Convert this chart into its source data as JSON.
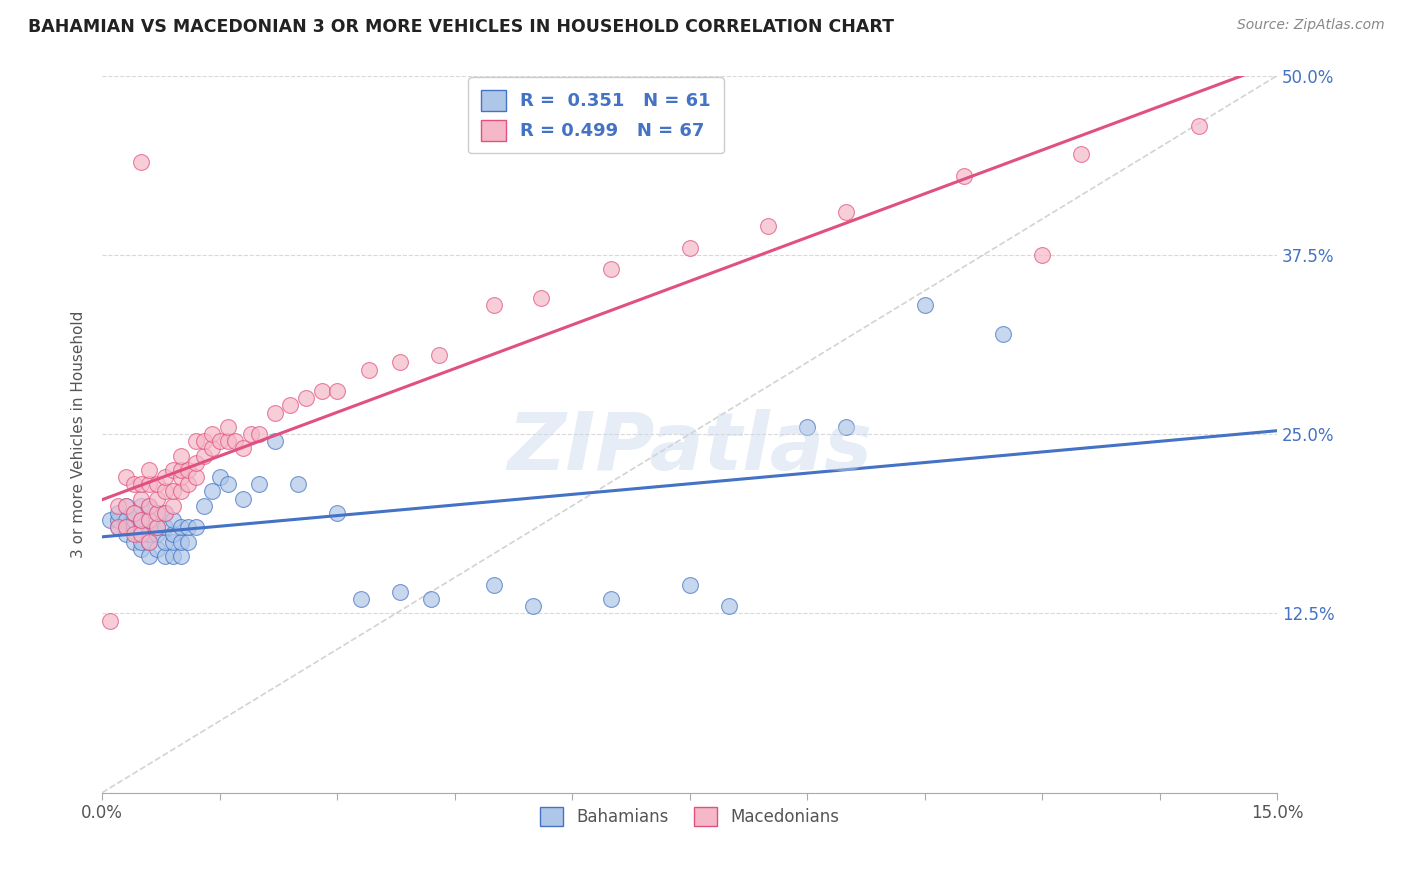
{
  "title": "BAHAMIAN VS MACEDONIAN 3 OR MORE VEHICLES IN HOUSEHOLD CORRELATION CHART",
  "source": "Source: ZipAtlas.com",
  "ylabel": "3 or more Vehicles in Household",
  "yticks_labels": [
    "",
    "12.5%",
    "25.0%",
    "37.5%",
    "50.0%"
  ],
  "ytick_vals": [
    0.0,
    0.125,
    0.25,
    0.375,
    0.5
  ],
  "xlim": [
    0.0,
    0.15
  ],
  "ylim": [
    0.0,
    0.5
  ],
  "watermark": "ZIPatlas",
  "R1": 0.351,
  "N1": 61,
  "R2": 0.499,
  "N2": 67,
  "bahamian_color": "#aec6e8",
  "macedonian_color": "#f4b8c8",
  "bahamian_edge_color": "#4472c4",
  "macedonian_edge_color": "#e05080",
  "bahamian_line_color": "#4472c4",
  "macedonian_line_color": "#e05080",
  "diagonal_color": "#c8c8c8",
  "grid_color": "#d9d9d9",
  "legend_text_color": "#4472c4",
  "bahamian_x": [
    0.001,
    0.002,
    0.002,
    0.002,
    0.003,
    0.003,
    0.003,
    0.003,
    0.004,
    0.004,
    0.004,
    0.004,
    0.005,
    0.005,
    0.005,
    0.005,
    0.005,
    0.006,
    0.006,
    0.006,
    0.006,
    0.006,
    0.007,
    0.007,
    0.007,
    0.007,
    0.008,
    0.008,
    0.008,
    0.008,
    0.009,
    0.009,
    0.009,
    0.009,
    0.01,
    0.01,
    0.01,
    0.011,
    0.011,
    0.012,
    0.013,
    0.014,
    0.015,
    0.016,
    0.018,
    0.02,
    0.022,
    0.025,
    0.03,
    0.033,
    0.038,
    0.042,
    0.05,
    0.055,
    0.065,
    0.075,
    0.08,
    0.09,
    0.095,
    0.105,
    0.115
  ],
  "bahamian_y": [
    0.19,
    0.185,
    0.19,
    0.195,
    0.18,
    0.185,
    0.19,
    0.2,
    0.175,
    0.185,
    0.19,
    0.195,
    0.17,
    0.175,
    0.185,
    0.19,
    0.2,
    0.165,
    0.175,
    0.18,
    0.19,
    0.2,
    0.17,
    0.18,
    0.185,
    0.195,
    0.165,
    0.175,
    0.185,
    0.195,
    0.165,
    0.175,
    0.18,
    0.19,
    0.165,
    0.175,
    0.185,
    0.175,
    0.185,
    0.185,
    0.2,
    0.21,
    0.22,
    0.215,
    0.205,
    0.215,
    0.245,
    0.215,
    0.195,
    0.135,
    0.14,
    0.135,
    0.145,
    0.13,
    0.135,
    0.145,
    0.13,
    0.255,
    0.255,
    0.34,
    0.32
  ],
  "macedonian_x": [
    0.001,
    0.002,
    0.002,
    0.003,
    0.003,
    0.003,
    0.004,
    0.004,
    0.004,
    0.005,
    0.005,
    0.005,
    0.005,
    0.006,
    0.006,
    0.006,
    0.006,
    0.006,
    0.007,
    0.007,
    0.007,
    0.007,
    0.008,
    0.008,
    0.008,
    0.009,
    0.009,
    0.009,
    0.01,
    0.01,
    0.01,
    0.01,
    0.011,
    0.011,
    0.012,
    0.012,
    0.012,
    0.013,
    0.013,
    0.014,
    0.014,
    0.015,
    0.016,
    0.016,
    0.017,
    0.018,
    0.019,
    0.02,
    0.022,
    0.024,
    0.026,
    0.028,
    0.03,
    0.034,
    0.038,
    0.043,
    0.05,
    0.056,
    0.065,
    0.075,
    0.085,
    0.095,
    0.11,
    0.125,
    0.14,
    0.005,
    0.12
  ],
  "macedonian_y": [
    0.12,
    0.185,
    0.2,
    0.185,
    0.2,
    0.22,
    0.18,
    0.195,
    0.215,
    0.18,
    0.19,
    0.205,
    0.215,
    0.175,
    0.19,
    0.2,
    0.215,
    0.225,
    0.185,
    0.195,
    0.205,
    0.215,
    0.195,
    0.21,
    0.22,
    0.2,
    0.21,
    0.225,
    0.21,
    0.22,
    0.225,
    0.235,
    0.215,
    0.225,
    0.22,
    0.23,
    0.245,
    0.235,
    0.245,
    0.24,
    0.25,
    0.245,
    0.245,
    0.255,
    0.245,
    0.24,
    0.25,
    0.25,
    0.265,
    0.27,
    0.275,
    0.28,
    0.28,
    0.295,
    0.3,
    0.305,
    0.34,
    0.345,
    0.365,
    0.38,
    0.395,
    0.405,
    0.43,
    0.445,
    0.465,
    0.44,
    0.375
  ]
}
